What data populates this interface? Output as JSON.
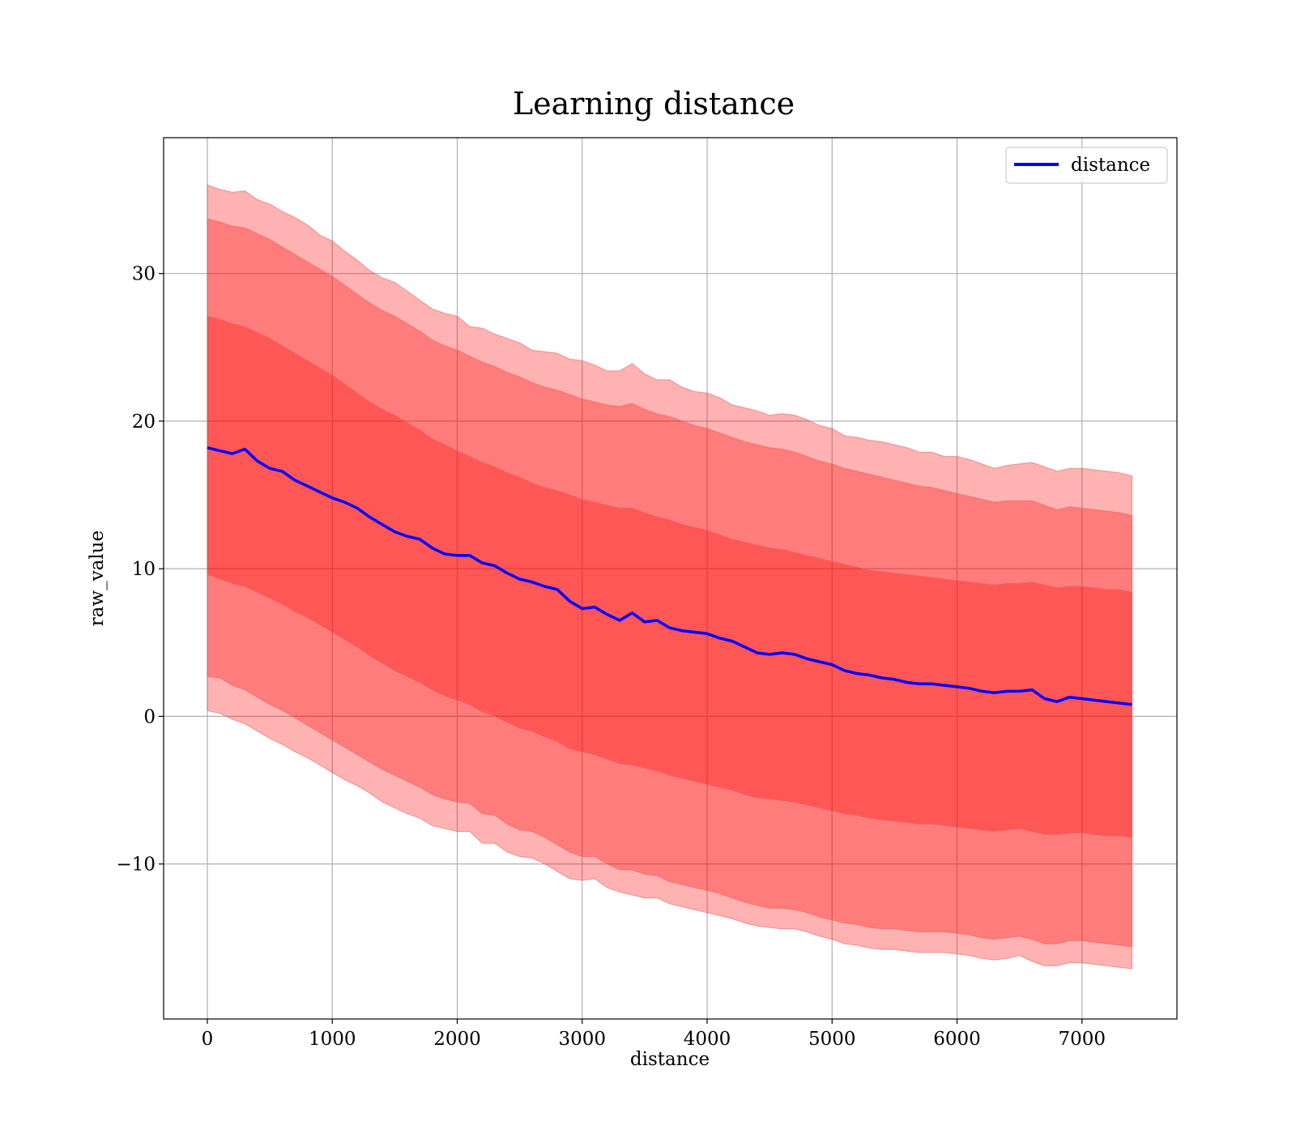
{
  "chart_data": {
    "type": "area",
    "title": "Learning distance",
    "xlabel": "distance",
    "ylabel": "raw_value",
    "xlim": [
      -350,
      7760
    ],
    "ylim": [
      -20.5,
      39.2
    ],
    "x_ticks": [
      0,
      1000,
      2000,
      3000,
      4000,
      5000,
      6000,
      7000
    ],
    "y_ticks": [
      -10,
      0,
      10,
      20,
      30
    ],
    "y_tick_labels": [
      "−10",
      "0",
      "10",
      "20",
      "30"
    ],
    "grid": true,
    "legend_position": "top-right",
    "colors": {
      "line": "#0000ff",
      "band": "#ff0000",
      "band_outline": "#e56060"
    },
    "series": [
      {
        "name": "distance",
        "x": [
          0,
          100,
          200,
          300,
          400,
          500,
          600,
          700,
          800,
          900,
          1000,
          1100,
          1200,
          1300,
          1400,
          1500,
          1600,
          1700,
          1800,
          1900,
          2000,
          2100,
          2200,
          2300,
          2400,
          2500,
          2600,
          2700,
          2800,
          2900,
          3000,
          3100,
          3200,
          3300,
          3400,
          3500,
          3600,
          3700,
          3800,
          3900,
          4000,
          4100,
          4200,
          4300,
          4400,
          4500,
          4600,
          4700,
          4800,
          4900,
          5000,
          5100,
          5200,
          5300,
          5400,
          5500,
          5600,
          5700,
          5800,
          5900,
          6000,
          6100,
          6200,
          6300,
          6400,
          6500,
          6600,
          6700,
          6800,
          6900,
          7000,
          7100,
          7200,
          7300,
          7400
        ],
        "y": [
          18.2,
          18.0,
          17.8,
          18.1,
          17.3,
          16.8,
          16.6,
          16.0,
          15.6,
          15.2,
          14.8,
          14.5,
          14.1,
          13.5,
          13.0,
          12.5,
          12.2,
          12.0,
          11.4,
          11.0,
          10.9,
          10.9,
          10.4,
          10.2,
          9.7,
          9.3,
          9.1,
          8.8,
          8.6,
          7.8,
          7.3,
          7.4,
          6.9,
          6.5,
          7.0,
          6.4,
          6.5,
          6.0,
          5.8,
          5.7,
          5.6,
          5.3,
          5.1,
          4.7,
          4.3,
          4.2,
          4.3,
          4.2,
          3.9,
          3.7,
          3.5,
          3.1,
          2.9,
          2.8,
          2.6,
          2.5,
          2.3,
          2.2,
          2.2,
          2.1,
          2.0,
          1.9,
          1.7,
          1.6,
          1.7,
          1.7,
          1.8,
          1.2,
          1.0,
          1.3,
          1.2,
          1.1,
          1.0,
          0.9,
          0.8
        ]
      }
    ],
    "bands": [
      {
        "lower": [
          0.4,
          0.2,
          -0.2,
          -0.5,
          -1.0,
          -1.5,
          -1.9,
          -2.4,
          -2.8,
          -3.3,
          -3.8,
          -4.3,
          -4.7,
          -5.2,
          -5.8,
          -6.2,
          -6.6,
          -6.9,
          -7.4,
          -7.6,
          -7.8,
          -7.8,
          -8.6,
          -8.6,
          -9.2,
          -9.5,
          -9.6,
          -10.0,
          -10.5,
          -11.0,
          -11.1,
          -11.0,
          -11.6,
          -11.9,
          -12.1,
          -12.3,
          -12.3,
          -12.7,
          -12.9,
          -13.1,
          -13.3,
          -13.5,
          -13.7,
          -14.0,
          -14.2,
          -14.3,
          -14.4,
          -14.4,
          -14.6,
          -14.9,
          -15.1,
          -15.4,
          -15.5,
          -15.7,
          -15.8,
          -15.8,
          -15.9,
          -16.0,
          -16.0,
          -16.0,
          -16.1,
          -16.2,
          -16.4,
          -16.5,
          -16.4,
          -16.2,
          -16.6,
          -16.9,
          -16.9,
          -16.7,
          -16.7,
          -16.8,
          -16.9,
          -17.0,
          -17.1
        ],
        "upper": [
          36.0,
          35.7,
          35.5,
          35.6,
          35.0,
          34.7,
          34.2,
          33.8,
          33.3,
          32.6,
          32.2,
          31.5,
          30.9,
          30.2,
          29.7,
          29.4,
          28.8,
          28.2,
          27.6,
          27.3,
          27.1,
          26.4,
          26.3,
          25.9,
          25.6,
          25.3,
          24.8,
          24.7,
          24.6,
          24.2,
          24.1,
          23.8,
          23.4,
          23.4,
          23.9,
          23.2,
          22.8,
          22.8,
          22.3,
          22.0,
          21.9,
          21.6,
          21.1,
          20.9,
          20.7,
          20.4,
          20.5,
          20.4,
          20.1,
          19.7,
          19.5,
          19.0,
          18.9,
          18.7,
          18.6,
          18.4,
          18.2,
          17.9,
          17.9,
          17.6,
          17.6,
          17.4,
          17.1,
          16.8,
          17.0,
          17.1,
          17.2,
          16.9,
          16.6,
          16.8,
          16.8,
          16.7,
          16.6,
          16.5,
          16.3
        ]
      },
      {
        "lower": [
          2.7,
          2.6,
          2.1,
          1.8,
          1.3,
          0.8,
          0.4,
          -0.1,
          -0.6,
          -1.1,
          -1.6,
          -2.1,
          -2.6,
          -3.1,
          -3.6,
          -4.0,
          -4.4,
          -4.8,
          -5.3,
          -5.6,
          -5.8,
          -5.9,
          -6.6,
          -6.7,
          -7.3,
          -7.7,
          -7.8,
          -8.2,
          -8.7,
          -9.2,
          -9.5,
          -9.5,
          -10.0,
          -10.4,
          -10.4,
          -10.7,
          -10.8,
          -11.2,
          -11.4,
          -11.6,
          -11.8,
          -12.0,
          -12.3,
          -12.6,
          -12.8,
          -13.0,
          -13.0,
          -13.1,
          -13.3,
          -13.6,
          -13.8,
          -14.0,
          -14.1,
          -14.3,
          -14.4,
          -14.4,
          -14.5,
          -14.6,
          -14.6,
          -14.6,
          -14.7,
          -14.8,
          -15.0,
          -15.1,
          -15.0,
          -14.9,
          -15.1,
          -15.4,
          -15.4,
          -15.2,
          -15.2,
          -15.3,
          -15.4,
          -15.5,
          -15.6
        ],
        "upper": [
          33.7,
          33.5,
          33.2,
          33.1,
          32.7,
          32.3,
          31.8,
          31.3,
          30.8,
          30.3,
          29.8,
          29.2,
          28.6,
          28.0,
          27.5,
          27.1,
          26.6,
          26.1,
          25.5,
          25.1,
          24.8,
          24.4,
          24.0,
          23.7,
          23.3,
          23.0,
          22.6,
          22.3,
          22.1,
          21.8,
          21.5,
          21.3,
          21.1,
          21.0,
          21.2,
          20.8,
          20.5,
          20.3,
          20.0,
          19.7,
          19.5,
          19.2,
          18.9,
          18.6,
          18.4,
          18.2,
          18.1,
          17.9,
          17.6,
          17.3,
          17.1,
          16.8,
          16.6,
          16.4,
          16.2,
          16.0,
          15.8,
          15.6,
          15.5,
          15.3,
          15.1,
          14.9,
          14.7,
          14.5,
          14.6,
          14.6,
          14.6,
          14.3,
          14.0,
          14.2,
          14.1,
          14.0,
          13.9,
          13.8,
          13.6
        ]
      },
      {
        "lower": [
          9.6,
          9.3,
          9.0,
          8.8,
          8.4,
          8.0,
          7.6,
          7.1,
          6.7,
          6.2,
          5.7,
          5.2,
          4.7,
          4.1,
          3.6,
          3.1,
          2.7,
          2.3,
          1.8,
          1.4,
          1.1,
          0.8,
          0.3,
          0.0,
          -0.4,
          -0.8,
          -1.0,
          -1.4,
          -1.7,
          -2.2,
          -2.4,
          -2.6,
          -2.9,
          -3.2,
          -3.3,
          -3.5,
          -3.7,
          -4.0,
          -4.2,
          -4.4,
          -4.6,
          -4.8,
          -5.0,
          -5.3,
          -5.5,
          -5.6,
          -5.7,
          -5.8,
          -6.0,
          -6.2,
          -6.4,
          -6.6,
          -6.7,
          -6.9,
          -7.0,
          -7.1,
          -7.2,
          -7.3,
          -7.3,
          -7.4,
          -7.5,
          -7.6,
          -7.7,
          -7.8,
          -7.7,
          -7.6,
          -7.8,
          -8.0,
          -8.0,
          -7.9,
          -7.9,
          -8.0,
          -8.1,
          -8.1,
          -8.2
        ],
        "upper": [
          27.1,
          26.9,
          26.6,
          26.4,
          26.0,
          25.6,
          25.1,
          24.6,
          24.1,
          23.6,
          23.1,
          22.5,
          21.9,
          21.3,
          20.8,
          20.4,
          19.9,
          19.4,
          18.8,
          18.4,
          18.0,
          17.6,
          17.2,
          16.9,
          16.5,
          16.2,
          15.8,
          15.5,
          15.3,
          15.0,
          14.7,
          14.5,
          14.3,
          14.1,
          14.1,
          13.8,
          13.5,
          13.3,
          13.0,
          12.8,
          12.6,
          12.3,
          12.0,
          11.8,
          11.6,
          11.4,
          11.3,
          11.1,
          10.9,
          10.7,
          10.5,
          10.3,
          10.1,
          9.9,
          9.8,
          9.7,
          9.6,
          9.5,
          9.4,
          9.3,
          9.2,
          9.1,
          9.0,
          8.9,
          9.0,
          9.0,
          9.1,
          8.9,
          8.7,
          8.8,
          8.8,
          8.7,
          8.6,
          8.6,
          8.4
        ]
      }
    ]
  }
}
